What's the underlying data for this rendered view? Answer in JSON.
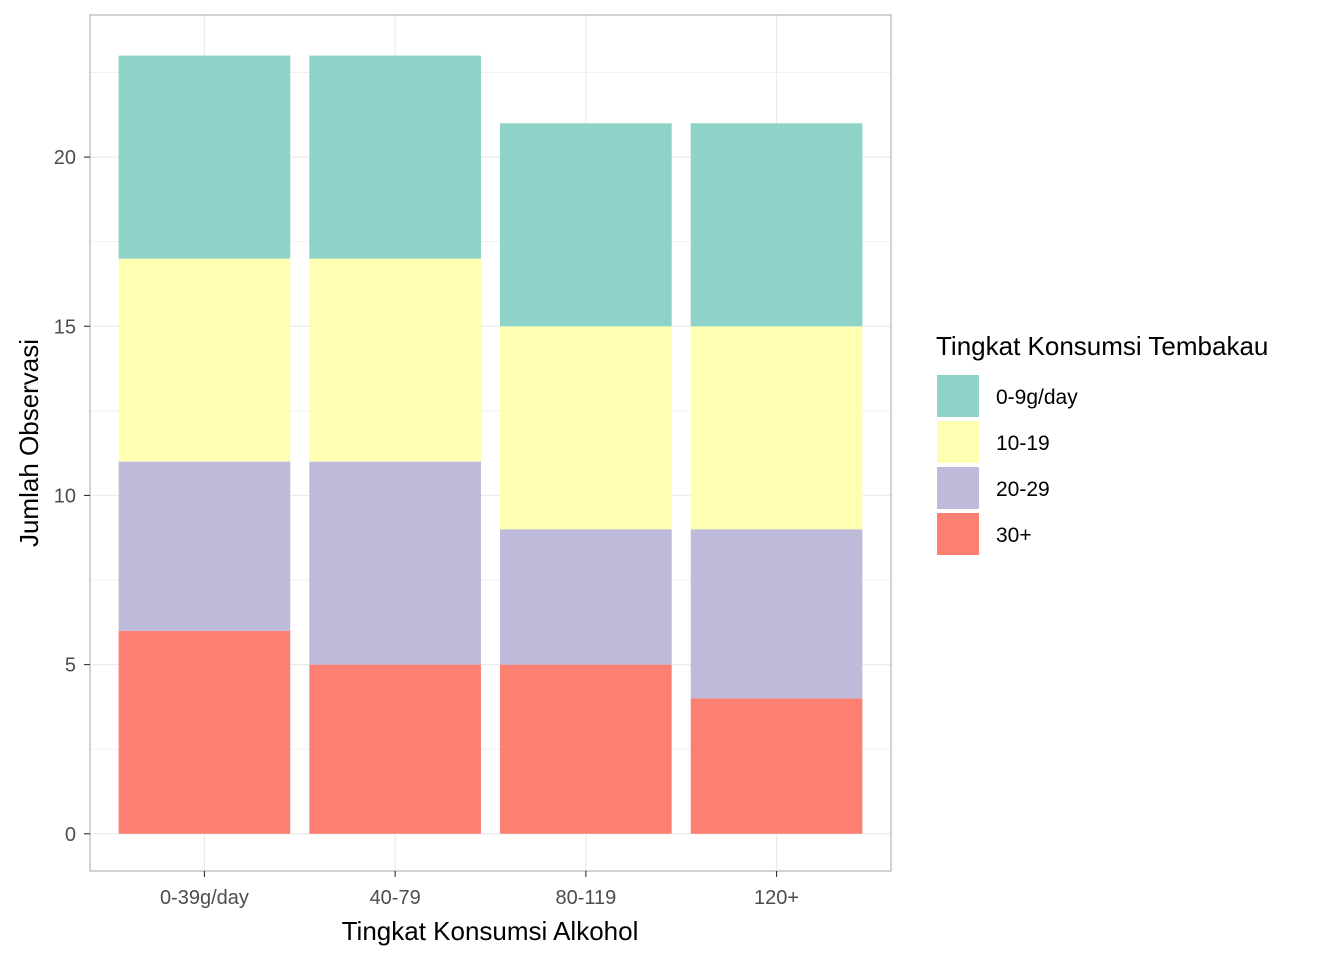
{
  "chart_data": {
    "type": "bar",
    "stacked": true,
    "title": "",
    "xlabel": "Tingkat Konsumsi Alkohol",
    "ylabel": "Jumlah Observasi",
    "categories": [
      "0-39g/day",
      "40-79",
      "80-119",
      "120+"
    ],
    "series": [
      {
        "name": "30+",
        "values": [
          6,
          5,
          5,
          4
        ],
        "color": "#FB8072"
      },
      {
        "name": "20-29",
        "values": [
          5,
          6,
          4,
          5
        ],
        "color": "#BEBADA"
      },
      {
        "name": "10-19",
        "values": [
          6,
          6,
          6,
          6
        ],
        "color": "#FFFFB3"
      },
      {
        "name": "0-9g/day",
        "values": [
          6,
          6,
          6,
          6
        ],
        "color": "#8DD3C7"
      }
    ],
    "ylim": [
      -1.1,
      24.2
    ],
    "yticks": [
      0,
      5,
      10,
      15,
      20
    ],
    "grid": true,
    "legend": {
      "title": "Tingkat Konsumsi Tembakau",
      "placement": "right",
      "order": [
        "0-9g/day",
        "10-19",
        "20-29",
        "30+"
      ]
    }
  }
}
